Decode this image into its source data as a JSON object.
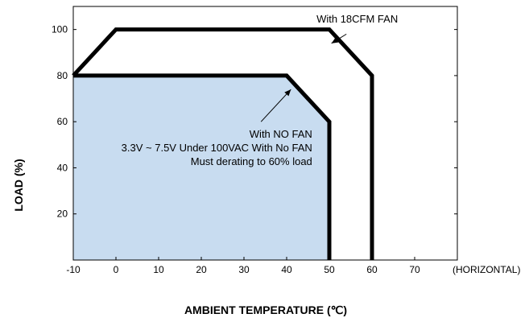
{
  "chart_data": {
    "type": "area",
    "xlabel": "AMBIENT TEMPERATURE (℃)",
    "ylabel": "LOAD (%)",
    "x_suffix": "(HORIZONTAL)",
    "xlim": [
      -10,
      80
    ],
    "ylim": [
      0,
      110
    ],
    "xticks": [
      -10,
      0,
      10,
      20,
      30,
      40,
      50,
      60,
      70
    ],
    "yticks": [
      20,
      40,
      60,
      80,
      100
    ],
    "grid": false,
    "series": [
      {
        "name": "With 18CFM FAN",
        "filled": false,
        "x": [
          -10,
          0,
          50,
          60,
          60
        ],
        "y": [
          80,
          100,
          100,
          80,
          0
        ]
      },
      {
        "name": "With NO FAN",
        "filled": true,
        "x": [
          -10,
          40,
          50,
          50
        ],
        "y": [
          80,
          80,
          60,
          0
        ]
      }
    ],
    "annotations": [
      {
        "lines": [
          "With 18CFM FAN"
        ],
        "anchor": "start",
        "text_at": [
          47,
          103
        ],
        "arrow_from": [
          54,
          98
        ],
        "arrow_to": [
          50.5,
          94
        ]
      },
      {
        "lines": [
          "With NO FAN",
          "3.3V ~ 7.5V Under 100VAC With No FAN",
          "Must derating to 60% load"
        ],
        "anchor": "end",
        "text_at": [
          46,
          53
        ],
        "arrow_from": [
          34,
          60
        ],
        "arrow_to": [
          41,
          74
        ]
      }
    ],
    "colors": {
      "fill": "#c8dcf0",
      "line": "#000000"
    }
  }
}
